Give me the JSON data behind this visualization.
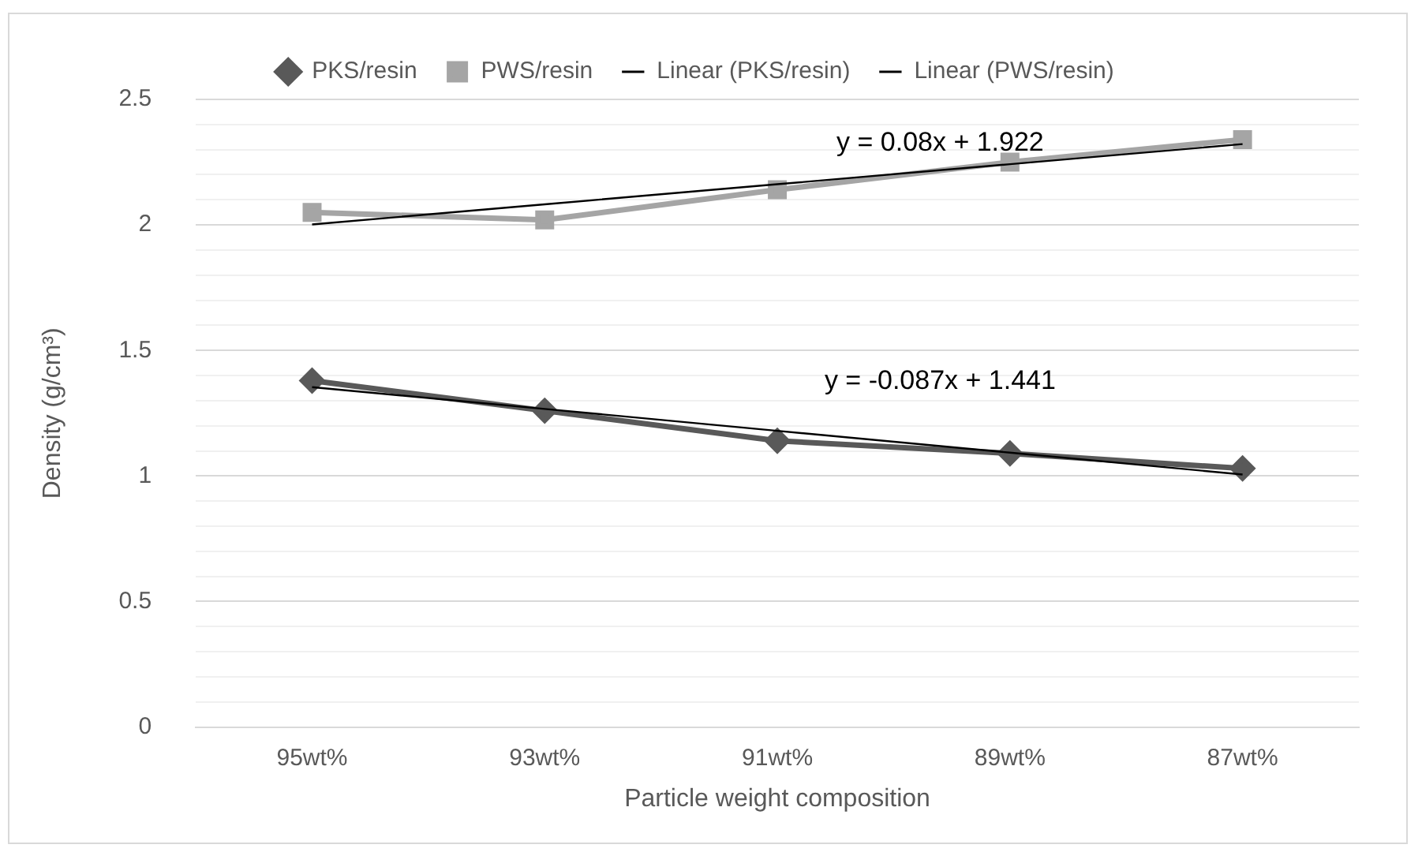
{
  "chart_data": {
    "type": "line",
    "xlabel": "Particle weight composition",
    "ylabel": "Density (g/cm³)",
    "categories": [
      "95wt%",
      "93wt%",
      "91wt%",
      "89wt%",
      "87wt%"
    ],
    "series": [
      {
        "name": "PKS/resin",
        "color": "#595959",
        "marker": "diamond",
        "values": [
          1.38,
          1.26,
          1.14,
          1.09,
          1.03
        ]
      },
      {
        "name": "PWS/resin",
        "color": "#a5a5a5",
        "marker": "square",
        "values": [
          2.05,
          2.02,
          2.14,
          2.25,
          2.34
        ]
      },
      {
        "name": "Linear (PKS/resin)",
        "color": "#000000",
        "marker": "none",
        "values": [
          1.354,
          1.267,
          1.18,
          1.093,
          1.006
        ]
      },
      {
        "name": "Linear (PWS/resin)",
        "color": "#000000",
        "marker": "none",
        "values": [
          2.002,
          2.082,
          2.162,
          2.242,
          2.322
        ]
      }
    ],
    "ylim": [
      0,
      2.5
    ],
    "yticks": [
      0,
      {
        "value": 0.1,
        "label": null
      },
      {
        "value": 0.2,
        "label": null
      },
      {
        "value": 0.3,
        "label": null
      },
      {
        "value": 0.4,
        "label": null
      },
      0.5,
      {
        "value": 0.6,
        "label": null
      },
      {
        "value": 0.7,
        "label": null
      },
      {
        "value": 0.8,
        "label": null
      },
      {
        "value": 0.9,
        "label": null
      },
      1,
      {
        "value": 1.1,
        "label": null
      },
      {
        "value": 1.2,
        "label": null
      },
      {
        "value": 1.3,
        "label": null
      },
      {
        "value": 1.4,
        "label": null
      },
      1.5,
      {
        "value": 1.6,
        "label": null
      },
      {
        "value": 1.7,
        "label": null
      },
      {
        "value": 1.8,
        "label": null
      },
      {
        "value": 1.9,
        "label": null
      },
      2,
      {
        "value": 2.1,
        "label": null
      },
      {
        "value": 2.2,
        "label": null
      },
      {
        "value": 2.3,
        "label": null
      },
      {
        "value": 2.4,
        "label": null
      },
      2.5
    ],
    "annotations": [
      "y = 0.08x + 1.922",
      "y = -0.087x + 1.441"
    ],
    "grid": "y",
    "legend": "top"
  }
}
